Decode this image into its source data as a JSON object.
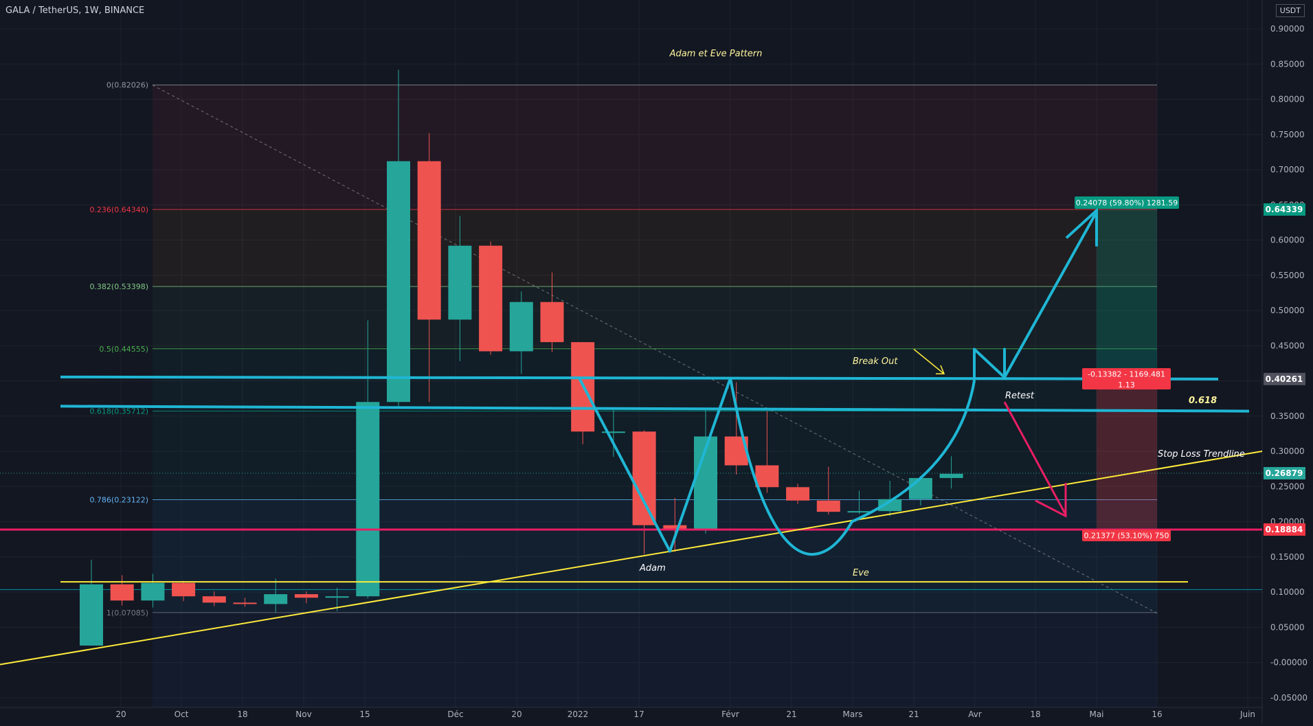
{
  "header": {
    "symbol": "GALA / TetherUS, 1W, BINANCE"
  },
  "currency": "USDT",
  "colors": {
    "background": "#131722",
    "up": "#26a69a",
    "down": "#ef5350",
    "cyan": "#1fb6d4",
    "yellow": "#ffeb3b",
    "magenta": "#e91e63",
    "grid": "#1e222d",
    "axis_text": "#b2b5be"
  },
  "chart_data": {
    "type": "candlestick",
    "title": "Adam et Eve Pattern",
    "x_ticks": [
      "20",
      "Oct",
      "18",
      "Nov",
      "15",
      "Déc",
      "20",
      "2022",
      "17",
      "Févr",
      "21",
      "Mars",
      "21",
      "Avr",
      "18",
      "Mai",
      "16",
      "Juin"
    ],
    "y_ticks": [
      "0.90000",
      "0.85000",
      "0.80000",
      "0.75000",
      "0.70000",
      "0.65000",
      "0.60000",
      "0.55000",
      "0.50000",
      "0.45000",
      "0.40000",
      "0.35000",
      "0.30000",
      "0.25000",
      "0.20000",
      "0.15000",
      "0.10000",
      "0.05000",
      "-0.00000",
      "-0.05000"
    ],
    "ylim": [
      -0.057,
      0.918
    ],
    "candles": [
      {
        "o": 0.024,
        "h": 0.146,
        "l": 0.024,
        "c": 0.111
      },
      {
        "o": 0.111,
        "h": 0.124,
        "l": 0.081,
        "c": 0.088
      },
      {
        "o": 0.088,
        "h": 0.126,
        "l": 0.078,
        "c": 0.113
      },
      {
        "o": 0.113,
        "h": 0.116,
        "l": 0.087,
        "c": 0.094
      },
      {
        "o": 0.094,
        "h": 0.101,
        "l": 0.08,
        "c": 0.085
      },
      {
        "o": 0.085,
        "h": 0.092,
        "l": 0.079,
        "c": 0.083
      },
      {
        "o": 0.083,
        "h": 0.119,
        "l": 0.071,
        "c": 0.097
      },
      {
        "o": 0.097,
        "h": 0.101,
        "l": 0.084,
        "c": 0.092
      },
      {
        "o": 0.092,
        "h": 0.106,
        "l": 0.073,
        "c": 0.094
      },
      {
        "o": 0.094,
        "h": 0.486,
        "l": 0.091,
        "c": 0.37
      },
      {
        "o": 0.37,
        "h": 0.842,
        "l": 0.362,
        "c": 0.712
      },
      {
        "o": 0.712,
        "h": 0.752,
        "l": 0.37,
        "c": 0.487
      },
      {
        "o": 0.487,
        "h": 0.634,
        "l": 0.428,
        "c": 0.592
      },
      {
        "o": 0.592,
        "h": 0.598,
        "l": 0.437,
        "c": 0.442
      },
      {
        "o": 0.442,
        "h": 0.527,
        "l": 0.41,
        "c": 0.512
      },
      {
        "o": 0.512,
        "h": 0.554,
        "l": 0.441,
        "c": 0.455
      },
      {
        "o": 0.455,
        "h": 0.455,
        "l": 0.31,
        "c": 0.328
      },
      {
        "o": 0.328,
        "h": 0.362,
        "l": 0.292,
        "c": 0.328
      },
      {
        "o": 0.328,
        "h": 0.33,
        "l": 0.154,
        "c": 0.195
      },
      {
        "o": 0.195,
        "h": 0.234,
        "l": 0.157,
        "c": 0.189
      },
      {
        "o": 0.189,
        "h": 0.358,
        "l": 0.183,
        "c": 0.321
      },
      {
        "o": 0.321,
        "h": 0.398,
        "l": 0.267,
        "c": 0.28
      },
      {
        "o": 0.28,
        "h": 0.357,
        "l": 0.241,
        "c": 0.249
      },
      {
        "o": 0.249,
        "h": 0.254,
        "l": 0.225,
        "c": 0.23
      },
      {
        "o": 0.23,
        "h": 0.278,
        "l": 0.21,
        "c": 0.214
      },
      {
        "o": 0.214,
        "h": 0.244,
        "l": 0.211,
        "c": 0.215
      },
      {
        "o": 0.215,
        "h": 0.258,
        "l": 0.208,
        "c": 0.232
      },
      {
        "o": 0.232,
        "h": 0.265,
        "l": 0.223,
        "c": 0.262
      },
      {
        "o": 0.262,
        "h": 0.293,
        "l": 0.247,
        "c": 0.268
      }
    ],
    "fib_levels": [
      {
        "label": "0(0.82026)",
        "value": 0.82026,
        "color": "#9598a1"
      },
      {
        "label": "0.236(0.64340)",
        "value": 0.6434,
        "color": "#f23645"
      },
      {
        "label": "0.382(0.53398)",
        "value": 0.53398,
        "color": "#81c784"
      },
      {
        "label": "0.5(0.44555)",
        "value": 0.44555,
        "color": "#4caf50"
      },
      {
        "label": "0.618(0.35712)",
        "value": 0.35712,
        "color": "#089981"
      },
      {
        "label": "0.786(0.23122)",
        "value": 0.23122,
        "color": "#64b5f6"
      },
      {
        "label": "1(0.07085)",
        "value": 0.07085,
        "color": "#787b86"
      }
    ],
    "price_tags": [
      {
        "value": 0.64339,
        "label": "0.64339",
        "color": "#089981"
      },
      {
        "value": 0.40261,
        "label": "0.40261",
        "color": "#50535e"
      },
      {
        "value": 0.26879,
        "label": "0.26879",
        "color": "#26a69a"
      },
      {
        "value": 0.18884,
        "label": "0.18884",
        "color": "#f23645"
      }
    ],
    "position": {
      "target_label": "0.24078 (59.80%) 1281.59",
      "entry_label": "-0.13382 - 1169.481",
      "ratio_label": "1.13",
      "stop_label": "0.21377 (53.10%) 750"
    },
    "annotations": {
      "break_out": "Break Out",
      "retest": "Retest",
      "level_0618": "0.618",
      "stop_loss": "Stop Loss Trendline",
      "adam": "Adam",
      "eve": "Eve"
    }
  }
}
